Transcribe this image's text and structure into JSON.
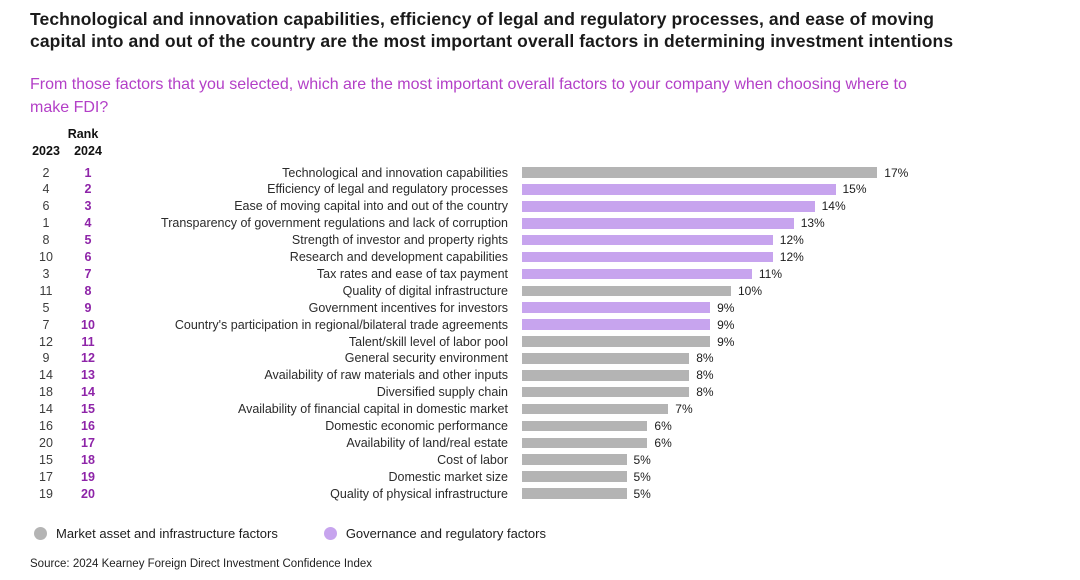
{
  "title": "Technological and innovation capabilities, efficiency of legal and regulatory processes, and ease of moving capital into and out of the country are the most important overall factors in determining investment intentions",
  "question": "From those factors that you selected, which are the most important overall factors to your company when choosing where to make FDI?",
  "rank_header": {
    "title": "Rank",
    "col_2023": "2023",
    "col_2024": "2024"
  },
  "legend": [
    {
      "label": "Market asset and infrastructure factors",
      "color": "#b4b4b4"
    },
    {
      "label": "Governance and regulatory factors",
      "color": "#c7a4ee"
    }
  ],
  "source": "Source: 2024 Kearney Foreign Direct Investment Confidence Index",
  "colors": {
    "market": "#b4b4b4",
    "governance": "#c7a4ee",
    "title_text": "#1a1a1a",
    "question_text": "#b33fc7",
    "rank_2024_text": "#8e24a8"
  },
  "chart_data": {
    "type": "bar",
    "orientation": "horizontal",
    "unit": "%",
    "xlim": [
      0,
      17
    ],
    "legend_position": "bottom",
    "grid": false,
    "rows": [
      {
        "rank_2023": "2",
        "rank_2024": "1",
        "label": "Technological and innovation capabilities",
        "value": 17,
        "group": "market"
      },
      {
        "rank_2023": "4",
        "rank_2024": "2",
        "label": "Efficiency of legal and regulatory processes",
        "value": 15,
        "group": "governance"
      },
      {
        "rank_2023": "6",
        "rank_2024": "3",
        "label": "Ease of moving capital into and out of the country",
        "value": 14,
        "group": "governance"
      },
      {
        "rank_2023": "1",
        "rank_2024": "4",
        "label": "Transparency of government regulations and lack of corruption",
        "value": 13,
        "group": "governance"
      },
      {
        "rank_2023": "8",
        "rank_2024": "5",
        "label": "Strength of investor and property rights",
        "value": 12,
        "group": "governance"
      },
      {
        "rank_2023": "10",
        "rank_2024": "6",
        "label": "Research and development capabilities",
        "value": 12,
        "group": "governance"
      },
      {
        "rank_2023": "3",
        "rank_2024": "7",
        "label": "Tax rates and ease of tax payment",
        "value": 11,
        "group": "governance"
      },
      {
        "rank_2023": "11",
        "rank_2024": "8",
        "label": "Quality of digital infrastructure",
        "value": 10,
        "group": "market"
      },
      {
        "rank_2023": "5",
        "rank_2024": "9",
        "label": "Government incentives for investors",
        "value": 9,
        "group": "governance"
      },
      {
        "rank_2023": "7",
        "rank_2024": "10",
        "label": "Country's participation in regional/bilateral trade agreements",
        "value": 9,
        "group": "governance"
      },
      {
        "rank_2023": "12",
        "rank_2024": "11",
        "label": "Talent/skill level of labor pool",
        "value": 9,
        "group": "market"
      },
      {
        "rank_2023": "9",
        "rank_2024": "12",
        "label": "General security environment",
        "value": 8,
        "group": "market"
      },
      {
        "rank_2023": "14",
        "rank_2024": "13",
        "label": "Availability of raw materials and other inputs",
        "value": 8,
        "group": "market"
      },
      {
        "rank_2023": "18",
        "rank_2024": "14",
        "label": "Diversified supply chain",
        "value": 8,
        "group": "market"
      },
      {
        "rank_2023": "14",
        "rank_2024": "15",
        "label": "Availability of financial capital in domestic market",
        "value": 7,
        "group": "market"
      },
      {
        "rank_2023": "16",
        "rank_2024": "16",
        "label": "Domestic economic performance",
        "value": 6,
        "group": "market"
      },
      {
        "rank_2023": "20",
        "rank_2024": "17",
        "label": "Availability of land/real estate",
        "value": 6,
        "group": "market"
      },
      {
        "rank_2023": "15",
        "rank_2024": "18",
        "label": "Cost of labor",
        "value": 5,
        "group": "market"
      },
      {
        "rank_2023": "17",
        "rank_2024": "19",
        "label": "Domestic market size",
        "value": 5,
        "group": "market"
      },
      {
        "rank_2023": "19",
        "rank_2024": "20",
        "label": "Quality of physical infrastructure",
        "value": 5,
        "group": "market"
      }
    ]
  }
}
